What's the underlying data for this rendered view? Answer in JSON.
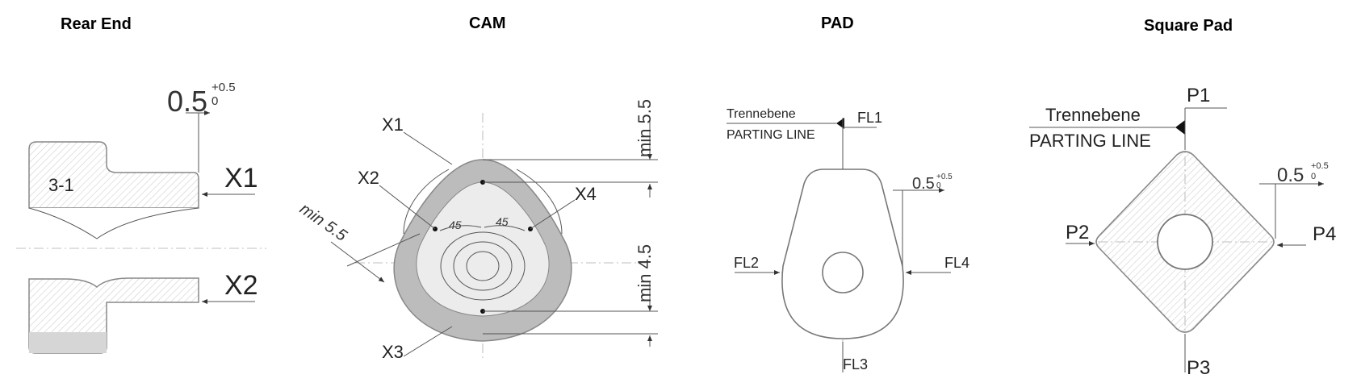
{
  "panels": {
    "rear_end": {
      "title": "Rear End",
      "part_label": "3-1",
      "dim_value": "0.5",
      "tol_upper": "+0.5",
      "tol_lower": "0",
      "label_x1": "X1",
      "label_x2": "X2"
    },
    "cam": {
      "title": "CAM",
      "label_x1": "X1",
      "label_x2": "X2",
      "label_x3": "X3",
      "label_x4": "X4",
      "dim_top": "min 5.5",
      "dim_bottom": "min 4.5",
      "dim_left": "min 5.5",
      "angle_left": "45",
      "angle_right": "45"
    },
    "pad": {
      "title": "PAD",
      "parting_de": "Trennebene",
      "parting_en": "PARTING LINE",
      "label_fl1": "FL1",
      "label_fl2": "FL2",
      "label_fl3": "FL3",
      "label_fl4": "FL4",
      "dim_value": "0.5",
      "tol_upper": "+0.5",
      "tol_lower": "0"
    },
    "square_pad": {
      "title": "Square Pad",
      "parting_de": "Trennebene",
      "parting_en": "PARTING LINE",
      "label_p1": "P1",
      "label_p2": "P2",
      "label_p3": "P3",
      "label_p4": "P4",
      "dim_value": "0.5",
      "tol_upper": "+0.5",
      "tol_lower": "0"
    }
  },
  "colors": {
    "hatch": "#c8c8c8",
    "band": "#bdbdbd",
    "line": "#555555"
  }
}
